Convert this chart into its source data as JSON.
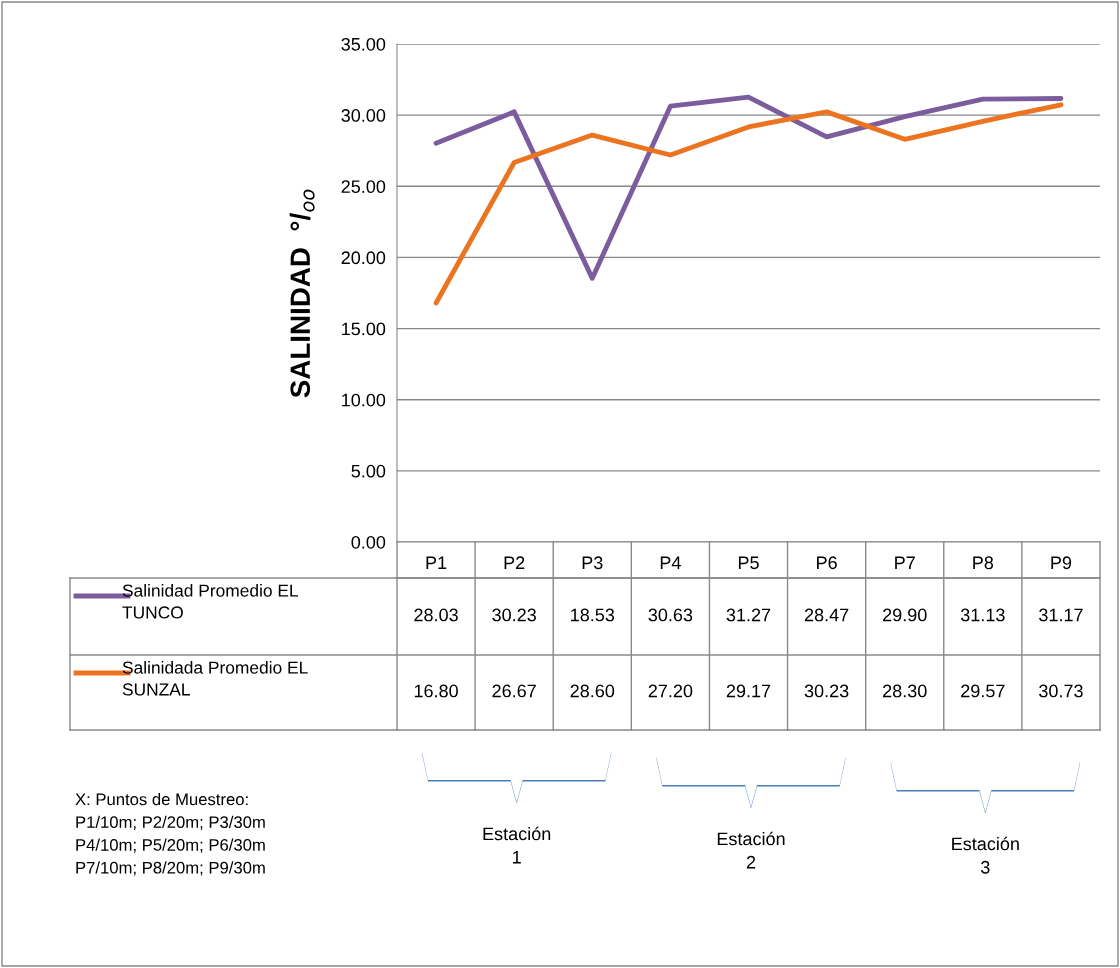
{
  "chart_data": {
    "type": "line",
    "ylabel": "SALINIDAD  °/$_{oo}$",
    "categories": [
      "P1",
      "P2",
      "P3",
      "P4",
      "P5",
      "P6",
      "P7",
      "P8",
      "P9"
    ],
    "series": [
      {
        "name": "Salinidad Promedio EL TUNCO",
        "color": "#7b5c9c",
        "values": [
          28.03,
          30.23,
          18.53,
          30.63,
          31.27,
          28.47,
          29.9,
          31.13,
          31.17
        ],
        "value_labels": [
          "28.03",
          "30.23",
          "18.53",
          "30.63",
          "31.27",
          "28.47",
          "29.90",
          "31.13",
          "31.17"
        ]
      },
      {
        "name": "Salinidada Promedio EL SUNZAL",
        "color": "#ec7420",
        "values": [
          16.8,
          26.67,
          28.6,
          27.2,
          29.17,
          30.23,
          28.3,
          29.57,
          30.73
        ],
        "value_labels": [
          "16.80",
          "26.67",
          "28.60",
          "27.20",
          "29.17",
          "30.23",
          "28.30",
          "29.57",
          "30.73"
        ]
      }
    ],
    "ylim": [
      0,
      35
    ],
    "yticks": [
      {
        "value": 0,
        "label": "0.00"
      },
      {
        "value": 5,
        "label": "5.00"
      },
      {
        "value": 10,
        "label": "10.00"
      },
      {
        "value": 15,
        "label": "15.00"
      },
      {
        "value": 20,
        "label": "20.00"
      },
      {
        "value": 25,
        "label": "25.00"
      },
      {
        "value": 30,
        "label": "30.00"
      },
      {
        "value": 35,
        "label": "35.00"
      }
    ],
    "grid": "y",
    "legend": "bottom",
    "marker": "none",
    "line_style": "solid",
    "annotations": [
      "X: Puntos de Muestreo:\nP1/10m; P2/20m; P3/30m\nP4/10m; P5/20m; P6/30m\nP7/10m; P8/20m; P9/30m",
      "Estación\n1",
      "Estación\n2",
      "Estación\n3"
    ]
  }
}
